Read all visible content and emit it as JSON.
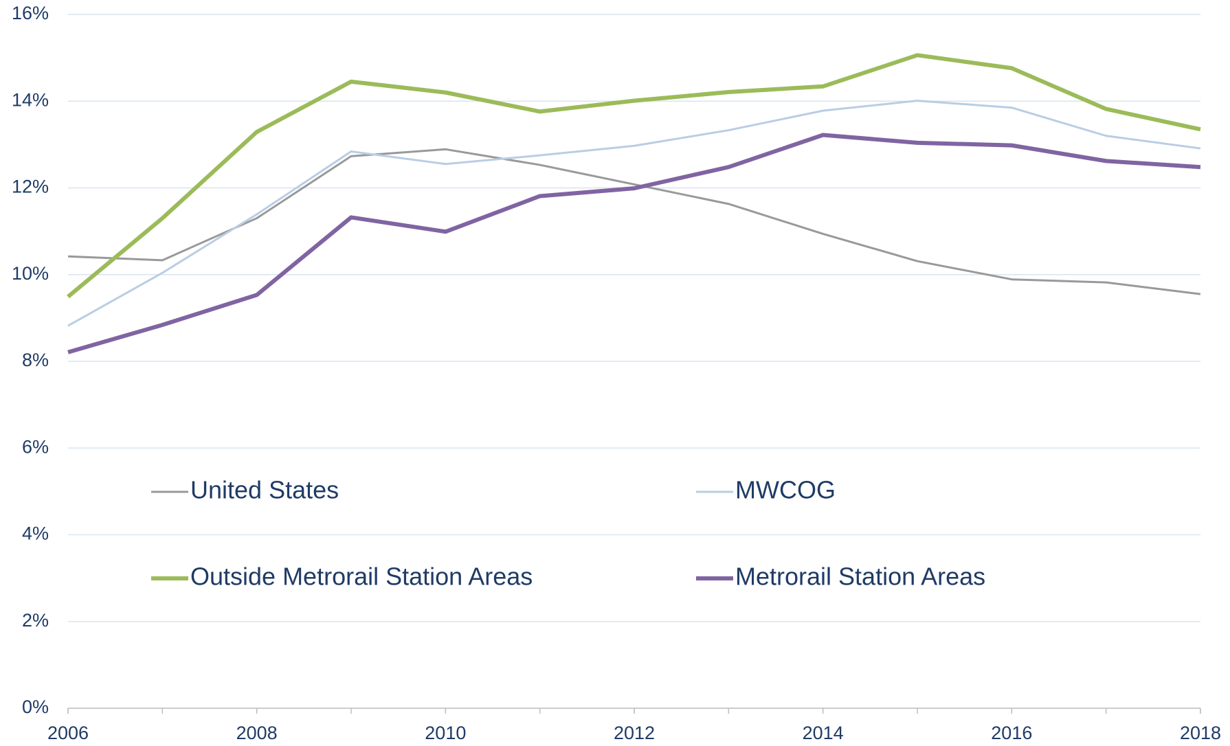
{
  "chart_data": {
    "type": "line",
    "x": [
      2006,
      2007,
      2008,
      2009,
      2010,
      2011,
      2012,
      2013,
      2014,
      2015,
      2016,
      2017,
      2018
    ],
    "series": [
      {
        "name": "United States",
        "color": "#999999",
        "width": 3,
        "values": [
          10.42,
          10.33,
          11.3,
          12.73,
          12.89,
          12.53,
          12.08,
          11.63,
          10.94,
          10.31,
          9.89,
          9.82,
          9.55
        ]
      },
      {
        "name": "MWCOG",
        "color": "#b9cde4",
        "width": 3,
        "values": [
          8.82,
          10.04,
          11.39,
          12.84,
          12.55,
          12.75,
          12.97,
          13.33,
          13.78,
          14.01,
          13.85,
          13.2,
          12.91
        ]
      },
      {
        "name": "Outside Metrorail Station Areas",
        "color": "#9bbb59",
        "width": 6,
        "values": [
          9.49,
          11.3,
          13.29,
          14.45,
          14.2,
          13.76,
          14.01,
          14.21,
          14.34,
          15.06,
          14.76,
          13.82,
          13.35
        ]
      },
      {
        "name": "Metrorail Station Areas",
        "color": "#8064a2",
        "width": 6,
        "values": [
          8.21,
          8.84,
          9.53,
          11.32,
          10.99,
          11.81,
          11.99,
          12.48,
          13.22,
          13.04,
          12.98,
          12.62,
          12.48
        ]
      }
    ],
    "xlim": [
      2006,
      2018
    ],
    "xticks": [
      2006,
      2008,
      2010,
      2012,
      2014,
      2016,
      2018
    ],
    "ylim": [
      0,
      16
    ],
    "yticks": [
      {
        "value": 0,
        "label": "0%"
      },
      {
        "value": 2,
        "label": "2%"
      },
      {
        "value": 4,
        "label": "4%"
      },
      {
        "value": 6,
        "label": "6%"
      },
      {
        "value": 8,
        "label": "8%"
      },
      {
        "value": 10,
        "label": "10%"
      },
      {
        "value": 12,
        "label": "12%"
      },
      {
        "value": 14,
        "label": "14%"
      },
      {
        "value": 16,
        "label": "16%"
      }
    ],
    "grid": true
  }
}
